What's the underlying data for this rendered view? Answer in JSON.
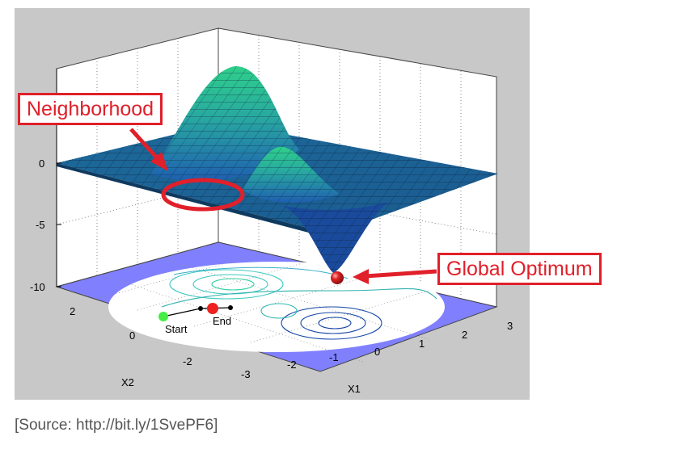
{
  "plot": {
    "z_ticks": [
      "0",
      "-5",
      "-10"
    ],
    "x1_ticks": [
      "-3",
      "-2",
      "-1",
      "0",
      "1",
      "2",
      "3"
    ],
    "x2_ticks": [
      "2",
      "0",
      "-2"
    ],
    "x1_label": "X1",
    "x2_label": "X2",
    "start_label": "Start",
    "end_label": "End"
  },
  "annotations": {
    "neighborhood": "Neighborhood",
    "global_optimum": "Global Optimum"
  },
  "colors": {
    "background": "#c8c8c8",
    "floor": "#8080ff",
    "surface_low": "#1f5fb0",
    "surface_high": "#2fd08a",
    "annotation": "#e0202a",
    "start_marker": "#44ee44",
    "end_marker": "#ee2020"
  },
  "source": "[Source: http://bit.ly/1SvePF6]"
}
